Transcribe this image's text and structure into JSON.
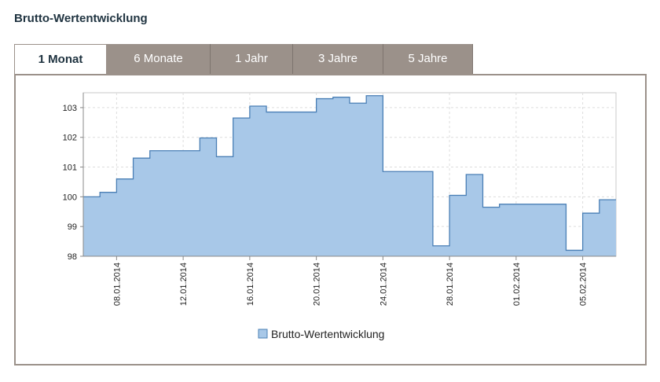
{
  "page": {
    "title": "Brutto-Wertentwicklung"
  },
  "tabs": [
    {
      "label": "1 Monat",
      "active": true
    },
    {
      "label": "6 Monate",
      "active": false
    },
    {
      "label": "1 Jahr",
      "active": false
    },
    {
      "label": "3 Jahre",
      "active": false
    },
    {
      "label": "5 Jahre",
      "active": false
    }
  ],
  "colors": {
    "fill": "#a8c8e8",
    "line": "#4a7fb5",
    "grid": "#dddddd",
    "tab_inactive": "#9b918a"
  },
  "chart_data": {
    "type": "area",
    "step": true,
    "title": "",
    "xlabel": "",
    "ylabel": "",
    "ylim": [
      98,
      103.5
    ],
    "xlim": [
      "2014-01-06",
      "2014-02-07"
    ],
    "y_ticks": [
      98,
      99,
      100,
      101,
      102,
      103
    ],
    "x_ticks": [
      "08.01.2014",
      "12.01.2014",
      "16.01.2014",
      "20.01.2014",
      "24.01.2014",
      "28.01.2014",
      "01.02.2014",
      "05.02.2014"
    ],
    "grid": true,
    "legend": {
      "position": "bottom",
      "entries": [
        "Brutto-Wertentwicklung"
      ]
    },
    "series": [
      {
        "name": "Brutto-Wertentwicklung",
        "x": [
          "2014-01-06",
          "2014-01-07",
          "2014-01-08",
          "2014-01-09",
          "2014-01-10",
          "2014-01-13",
          "2014-01-14",
          "2014-01-15",
          "2014-01-16",
          "2014-01-17",
          "2014-01-20",
          "2014-01-21",
          "2014-01-22",
          "2014-01-23",
          "2014-01-24",
          "2014-01-27",
          "2014-01-28",
          "2014-01-29",
          "2014-01-30",
          "2014-01-31",
          "2014-02-03",
          "2014-02-04",
          "2014-02-05",
          "2014-02-06",
          "2014-02-07"
        ],
        "y": [
          100.0,
          100.15,
          100.6,
          101.3,
          101.55,
          101.98,
          101.35,
          102.65,
          103.05,
          102.85,
          103.3,
          103.35,
          103.15,
          103.4,
          100.85,
          98.35,
          100.05,
          100.75,
          99.65,
          99.75,
          99.75,
          98.2,
          99.45,
          99.9,
          99.9
        ]
      }
    ]
  }
}
